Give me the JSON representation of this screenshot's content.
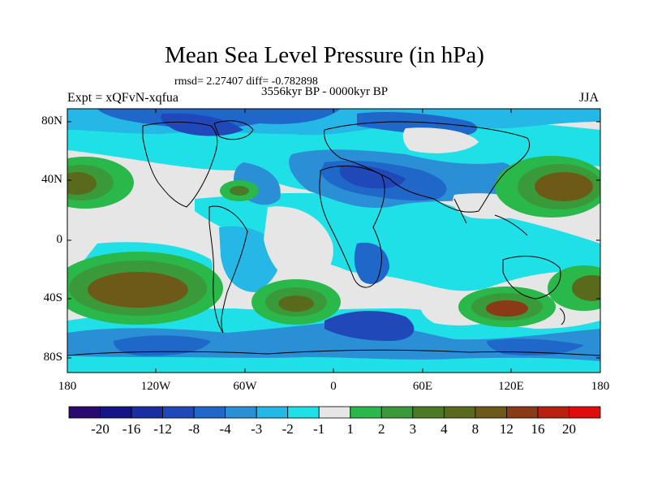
{
  "title": "Mean Sea Level Pressure (in hPa)",
  "stats": "rmsd= 2.27407 diff= -0.782898",
  "period": "3556kyr BP - 0000kyr BP",
  "experiment": "Expt = xQFvN-xqfua",
  "season": "JJA",
  "lat_labels": [
    "80N",
    "40N",
    "0",
    "40S",
    "80S"
  ],
  "lon_labels": [
    "180",
    "120W",
    "60W",
    "0",
    "60E",
    "120E",
    "180"
  ],
  "colorbar": {
    "colors": [
      "#2a0a6e",
      "#141486",
      "#1a2ea3",
      "#2148b8",
      "#1f67c8",
      "#2b8fd6",
      "#25b7e6",
      "#1fe0e6",
      "#e6e6e6",
      "#2ab84a",
      "#3a9a3a",
      "#4b7a26",
      "#5a6a1c",
      "#6e5a18",
      "#8a3a14",
      "#b8200f",
      "#e00c0c"
    ],
    "labels": [
      "-20",
      "-16",
      "-12",
      "-8",
      "-4",
      "-3",
      "-2",
      "-1",
      "1",
      "2",
      "3",
      "4",
      "8",
      "12",
      "16",
      "20"
    ]
  }
}
